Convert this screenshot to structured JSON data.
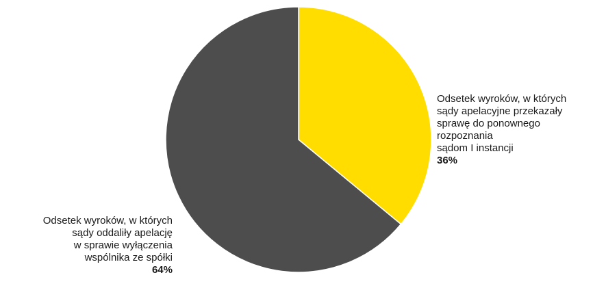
{
  "chart_data": {
    "type": "pie",
    "title": "",
    "slices": [
      {
        "label_lines": [
          "Odsetek wyroków, w których",
          "sądy apelacyjne przekazały",
          "sprawę do ponownego",
          "rozpoznania",
          "sądom I instancji"
        ],
        "value": 36,
        "value_label": "36%",
        "color": "#FFDD00"
      },
      {
        "label_lines": [
          "Odsetek wyroków, w których",
          "sądy oddaliły apelację",
          "w sprawie wyłączenia",
          "wspólnika ze spółki"
        ],
        "value": 64,
        "value_label": "64%",
        "color": "#4D4D4D"
      }
    ],
    "start_angle": "12 o'clock, clockwise",
    "legend": "none (direct labels)"
  }
}
